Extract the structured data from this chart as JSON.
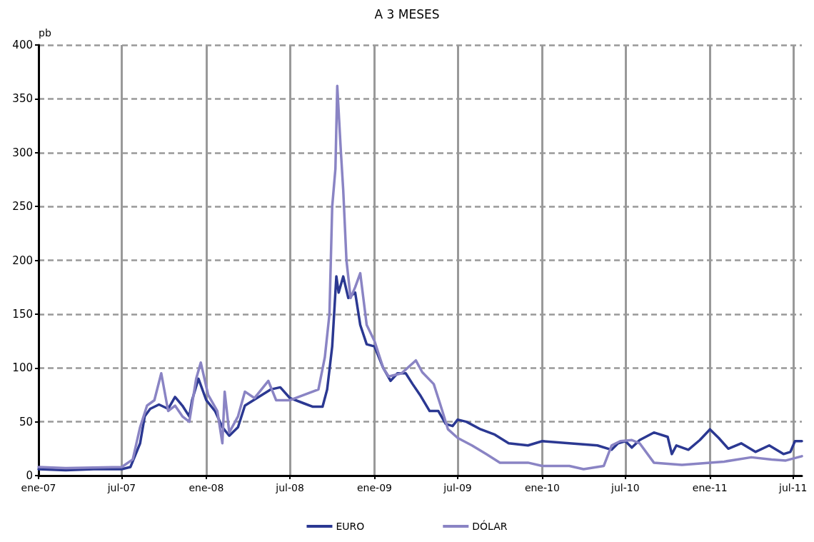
{
  "chart_data": {
    "type": "line",
    "title": "A 3 MESES",
    "ylabel": "pb",
    "xlim": [
      "2007-01-01",
      "2011-07-20"
    ],
    "xticks": [
      {
        "value": "2007-01-01",
        "label": "ene-07"
      },
      {
        "value": "2007-07-01",
        "label": "jul-07"
      },
      {
        "value": "2008-01-01",
        "label": "ene-08"
      },
      {
        "value": "2008-07-01",
        "label": "jul-08"
      },
      {
        "value": "2009-01-01",
        "label": "ene-09"
      },
      {
        "value": "2009-07-01",
        "label": "jul-09"
      },
      {
        "value": "2010-01-01",
        "label": "ene-10"
      },
      {
        "value": "2010-07-01",
        "label": "jul-10"
      },
      {
        "value": "2011-01-01",
        "label": "ene-11"
      },
      {
        "value": "2011-07-01",
        "label": "jul-11"
      }
    ],
    "ylim": [
      0,
      400
    ],
    "yticks": [
      0,
      50,
      100,
      150,
      200,
      250,
      300,
      350,
      400
    ],
    "grid": true,
    "legend": "bottom",
    "marker": "none",
    "line_style": "solid",
    "series": [
      {
        "name": "EURO",
        "color": "#2b3892",
        "x": [
          "2007-01-01",
          "2007-03-01",
          "2007-05-01",
          "2007-07-01",
          "2007-07-20",
          "2007-08-10",
          "2007-08-20",
          "2007-09-01",
          "2007-09-20",
          "2007-10-10",
          "2007-10-25",
          "2007-11-10",
          "2007-11-25",
          "2007-12-01",
          "2007-12-15",
          "2008-01-01",
          "2008-01-20",
          "2008-02-05",
          "2008-02-20",
          "2008-03-10",
          "2008-03-25",
          "2008-04-20",
          "2008-05-20",
          "2008-06-10",
          "2008-07-01",
          "2008-08-01",
          "2008-08-20",
          "2008-09-10",
          "2008-09-20",
          "2008-10-01",
          "2008-10-10",
          "2008-10-15",
          "2008-10-25",
          "2008-11-05",
          "2008-11-20",
          "2008-12-01",
          "2008-12-15",
          "2009-01-01",
          "2009-01-20",
          "2009-02-05",
          "2009-02-20",
          "2009-03-10",
          "2009-03-25",
          "2009-04-10",
          "2009-05-01",
          "2009-05-20",
          "2009-06-05",
          "2009-06-20",
          "2009-07-01",
          "2009-07-20",
          "2009-08-20",
          "2009-09-20",
          "2009-10-20",
          "2009-12-01",
          "2010-01-01",
          "2010-03-01",
          "2010-05-01",
          "2010-06-01",
          "2010-06-15",
          "2010-07-01",
          "2010-07-15",
          "2010-08-01",
          "2010-09-01",
          "2010-10-01",
          "2010-10-10",
          "2010-10-20",
          "2010-11-15",
          "2010-12-10",
          "2011-01-01",
          "2011-01-20",
          "2011-02-10",
          "2011-03-10",
          "2011-04-10",
          "2011-05-10",
          "2011-06-10",
          "2011-06-25",
          "2011-07-05",
          "2011-07-20"
        ],
        "values": [
          6,
          5,
          6,
          6,
          8,
          30,
          55,
          62,
          66,
          62,
          73,
          65,
          55,
          70,
          90,
          70,
          60,
          45,
          37,
          45,
          65,
          72,
          80,
          82,
          72,
          67,
          64,
          64,
          80,
          120,
          185,
          170,
          185,
          165,
          170,
          140,
          122,
          120,
          100,
          88,
          95,
          95,
          85,
          75,
          60,
          60,
          48,
          46,
          52,
          50,
          43,
          38,
          30,
          28,
          32,
          30,
          28,
          24,
          30,
          32,
          26,
          33,
          40,
          36,
          20,
          28,
          24,
          33,
          43,
          35,
          25,
          30,
          22,
          28,
          20,
          22,
          32,
          32
        ]
      },
      {
        "name": "DÓLAR",
        "color": "#8a84c4",
        "x": [
          "2007-01-01",
          "2007-03-01",
          "2007-07-01",
          "2007-07-25",
          "2007-08-10",
          "2007-08-25",
          "2007-09-10",
          "2007-09-25",
          "2007-10-10",
          "2007-10-25",
          "2007-11-10",
          "2007-11-25",
          "2007-12-10",
          "2007-12-20",
          "2008-01-05",
          "2008-01-25",
          "2008-02-05",
          "2008-02-10",
          "2008-02-20",
          "2008-03-10",
          "2008-03-25",
          "2008-04-15",
          "2008-05-15",
          "2008-06-01",
          "2008-07-01",
          "2008-08-01",
          "2008-09-01",
          "2008-09-15",
          "2008-09-25",
          "2008-10-01",
          "2008-10-08",
          "2008-10-12",
          "2008-10-20",
          "2008-10-25",
          "2008-11-01",
          "2008-11-10",
          "2008-11-20",
          "2008-12-01",
          "2008-12-15",
          "2009-01-01",
          "2009-01-20",
          "2009-02-01",
          "2009-03-01",
          "2009-04-01",
          "2009-04-15",
          "2009-05-10",
          "2009-05-25",
          "2009-06-10",
          "2009-07-01",
          "2009-08-01",
          "2009-09-01",
          "2009-10-01",
          "2009-12-01",
          "2010-01-01",
          "2010-03-01",
          "2010-04-01",
          "2010-05-15",
          "2010-06-01",
          "2010-06-20",
          "2010-07-15",
          "2010-08-01",
          "2010-09-01",
          "2010-11-01",
          "2011-01-01",
          "2011-02-01",
          "2011-04-01",
          "2011-05-15",
          "2011-06-15",
          "2011-07-20"
        ],
        "values": [
          8,
          7,
          8,
          15,
          45,
          65,
          70,
          95,
          60,
          65,
          55,
          50,
          90,
          105,
          75,
          60,
          30,
          78,
          40,
          55,
          78,
          72,
          88,
          70,
          70,
          75,
          80,
          110,
          150,
          250,
          285,
          362,
          300,
          265,
          200,
          165,
          175,
          188,
          140,
          125,
          100,
          92,
          95,
          107,
          96,
          85,
          65,
          43,
          35,
          28,
          20,
          12,
          12,
          9,
          9,
          6,
          9,
          28,
          32,
          33,
          30,
          12,
          10,
          12,
          13,
          17,
          15,
          14,
          18
        ]
      }
    ]
  }
}
